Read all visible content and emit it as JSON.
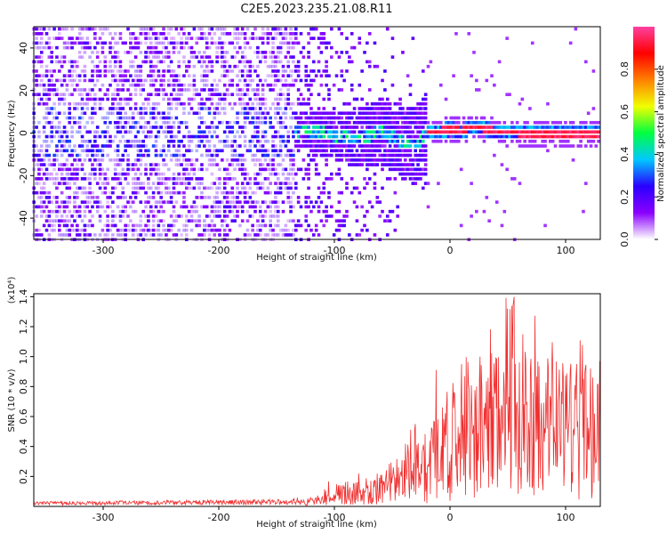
{
  "figure_title": "C2E5.2023.235.21.08.R11",
  "chart_data": [
    {
      "type": "heatmap",
      "xlabel": "Height of straight line (km)",
      "ylabel": "Frequency (Hz)",
      "xlim": [
        -360,
        130
      ],
      "ylim": [
        -50,
        50
      ],
      "x_ticks": [
        -300,
        -200,
        -100,
        0,
        100
      ],
      "y_ticks": [
        -40,
        -20,
        0,
        20,
        40
      ],
      "colorbar": {
        "label": "Normalized spectral amplitude",
        "range": [
          0,
          1
        ],
        "ticks": [
          "0.0",
          "0.2",
          "0.4",
          "0.6",
          "0.8"
        ],
        "tick_values": [
          0,
          0.2,
          0.4,
          0.6,
          0.8
        ],
        "colors": [
          "#ffffff",
          "#8a00ff",
          "#2a00ff",
          "#00c8ff",
          "#00ff40",
          "#f0ff00",
          "#ff8000",
          "#ff0000",
          "#ff40a0"
        ]
      },
      "ridge": [
        [
          -130,
          2
        ],
        [
          -100,
          -1
        ],
        [
          -80,
          -3
        ],
        [
          -60,
          1
        ],
        [
          -40,
          -4
        ],
        [
          -30,
          -6
        ],
        [
          -20,
          0
        ],
        [
          -10,
          1
        ],
        [
          0,
          2
        ],
        [
          10,
          1
        ],
        [
          20,
          3
        ],
        [
          40,
          1
        ],
        [
          60,
          0
        ],
        [
          80,
          0
        ],
        [
          100,
          0
        ],
        [
          130,
          0
        ]
      ],
      "grid": false
    },
    {
      "type": "line",
      "xlabel": "Height of straight line (km)",
      "ylabel": "SNR (10 * v/v)",
      "y_multiplier": "(x10⁴)",
      "xlim": [
        -360,
        130
      ],
      "ylim": [
        0,
        1.42
      ],
      "x_ticks": [
        -300,
        -200,
        -100,
        0,
        100
      ],
      "y_ticks": [
        "0.2",
        "0.4",
        "0.6",
        "0.8",
        "1.0",
        "1.2",
        "1.4"
      ],
      "y_tick_values": [
        0.2,
        0.4,
        0.6,
        0.8,
        1.0,
        1.2,
        1.4
      ],
      "series": [
        {
          "color": "#f03030",
          "envelope_points": [
            [
              -360,
              0.02
            ],
            [
              -140,
              0.03
            ],
            [
              -120,
              0.05
            ],
            [
              -100,
              0.12
            ],
            [
              -80,
              0.18
            ],
            [
              -60,
              0.2
            ],
            [
              -40,
              0.35
            ],
            [
              -30,
              0.55
            ],
            [
              -20,
              0.4
            ],
            [
              -10,
              0.6
            ],
            [
              0,
              0.7
            ],
            [
              10,
              0.85
            ],
            [
              20,
              0.9
            ],
            [
              40,
              0.95
            ],
            [
              60,
              0.92
            ],
            [
              80,
              0.9
            ],
            [
              100,
              0.85
            ],
            [
              130,
              0.85
            ]
          ]
        }
      ],
      "grid": false
    }
  ]
}
